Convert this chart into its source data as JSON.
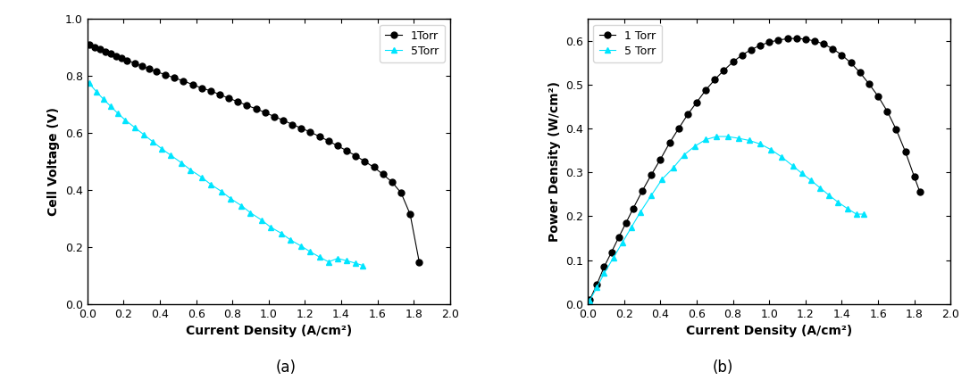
{
  "plot_a": {
    "title": "(a)",
    "xlabel": "Current Density (A/cm²)",
    "ylabel": "Cell Voltage (V)",
    "xlim": [
      0,
      2.0
    ],
    "ylim": [
      0.0,
      1.0
    ],
    "xticks": [
      0.0,
      0.2,
      0.4,
      0.6,
      0.8,
      1.0,
      1.2,
      1.4,
      1.6,
      1.8,
      2.0
    ],
    "yticks": [
      0.0,
      0.2,
      0.4,
      0.6,
      0.8,
      1.0
    ],
    "legend": [
      "1Torr",
      "5Torr"
    ],
    "series_1torr_x": [
      0.01,
      0.04,
      0.07,
      0.1,
      0.13,
      0.16,
      0.19,
      0.22,
      0.26,
      0.3,
      0.34,
      0.38,
      0.43,
      0.48,
      0.53,
      0.58,
      0.63,
      0.68,
      0.73,
      0.78,
      0.83,
      0.88,
      0.93,
      0.98,
      1.03,
      1.08,
      1.13,
      1.18,
      1.23,
      1.28,
      1.33,
      1.38,
      1.43,
      1.48,
      1.53,
      1.58,
      1.63,
      1.68,
      1.73,
      1.78,
      1.83
    ],
    "series_1torr_y": [
      0.91,
      0.9,
      0.893,
      0.885,
      0.878,
      0.87,
      0.862,
      0.855,
      0.845,
      0.835,
      0.825,
      0.815,
      0.805,
      0.793,
      0.783,
      0.77,
      0.758,
      0.748,
      0.735,
      0.722,
      0.71,
      0.697,
      0.685,
      0.672,
      0.658,
      0.645,
      0.63,
      0.617,
      0.603,
      0.588,
      0.572,
      0.555,
      0.538,
      0.52,
      0.5,
      0.48,
      0.455,
      0.428,
      0.39,
      0.315,
      0.148
    ],
    "series_5torr_x": [
      0.01,
      0.05,
      0.09,
      0.13,
      0.17,
      0.21,
      0.26,
      0.31,
      0.36,
      0.41,
      0.46,
      0.52,
      0.57,
      0.63,
      0.68,
      0.74,
      0.79,
      0.85,
      0.9,
      0.96,
      1.01,
      1.07,
      1.12,
      1.18,
      1.23,
      1.28,
      1.33,
      1.38,
      1.43,
      1.48,
      1.52
    ],
    "series_5torr_y": [
      0.775,
      0.745,
      0.718,
      0.693,
      0.668,
      0.645,
      0.62,
      0.595,
      0.57,
      0.545,
      0.522,
      0.495,
      0.47,
      0.445,
      0.42,
      0.395,
      0.37,
      0.345,
      0.32,
      0.295,
      0.27,
      0.248,
      0.225,
      0.203,
      0.183,
      0.165,
      0.148,
      0.16,
      0.152,
      0.143,
      0.135
    ]
  },
  "plot_b": {
    "title": "(b)",
    "xlabel": "Current Density (A/cm²)",
    "ylabel": "Power Density (W/cm²)",
    "xlim": [
      0,
      2.0
    ],
    "ylim": [
      0.0,
      0.65
    ],
    "xticks": [
      0.0,
      0.2,
      0.4,
      0.6,
      0.8,
      1.0,
      1.2,
      1.4,
      1.6,
      1.8,
      2.0
    ],
    "yticks": [
      0.0,
      0.1,
      0.2,
      0.3,
      0.4,
      0.5,
      0.6
    ],
    "legend": [
      "1 Torr",
      "5 Torr"
    ],
    "series_1torr_x": [
      0.01,
      0.05,
      0.09,
      0.13,
      0.17,
      0.21,
      0.25,
      0.3,
      0.35,
      0.4,
      0.45,
      0.5,
      0.55,
      0.6,
      0.65,
      0.7,
      0.75,
      0.8,
      0.85,
      0.9,
      0.95,
      1.0,
      1.05,
      1.1,
      1.15,
      1.2,
      1.25,
      1.3,
      1.35,
      1.4,
      1.45,
      1.5,
      1.55,
      1.6,
      1.65,
      1.7,
      1.75,
      1.8,
      1.83
    ],
    "series_1torr_y": [
      0.009,
      0.045,
      0.085,
      0.118,
      0.152,
      0.185,
      0.218,
      0.258,
      0.295,
      0.33,
      0.367,
      0.4,
      0.432,
      0.46,
      0.488,
      0.512,
      0.533,
      0.552,
      0.568,
      0.58,
      0.59,
      0.597,
      0.602,
      0.605,
      0.606,
      0.604,
      0.6,
      0.593,
      0.582,
      0.568,
      0.55,
      0.528,
      0.502,
      0.474,
      0.44,
      0.398,
      0.348,
      0.29,
      0.256
    ],
    "series_5torr_x": [
      0.01,
      0.05,
      0.09,
      0.14,
      0.19,
      0.24,
      0.29,
      0.35,
      0.41,
      0.47,
      0.53,
      0.59,
      0.65,
      0.71,
      0.77,
      0.83,
      0.89,
      0.95,
      1.01,
      1.07,
      1.13,
      1.18,
      1.23,
      1.28,
      1.33,
      1.38,
      1.43,
      1.48,
      1.52
    ],
    "series_5torr_y": [
      0.008,
      0.038,
      0.07,
      0.105,
      0.14,
      0.175,
      0.21,
      0.248,
      0.285,
      0.31,
      0.34,
      0.36,
      0.375,
      0.382,
      0.382,
      0.378,
      0.373,
      0.365,
      0.352,
      0.335,
      0.315,
      0.298,
      0.282,
      0.265,
      0.248,
      0.232,
      0.218,
      0.205,
      0.205
    ]
  },
  "color_black": "#000000",
  "color_cyan": "#00E5FF",
  "marker_circle": "o",
  "marker_triangle": "^",
  "markersize": 5,
  "linewidth": 0.8
}
